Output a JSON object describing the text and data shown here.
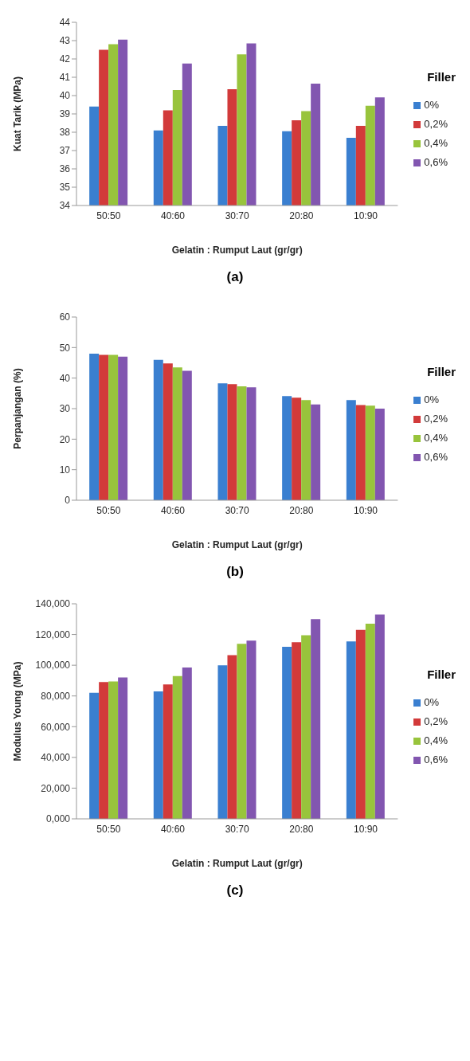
{
  "chart_data": [
    {
      "type": "bar",
      "ylabel": "Kuat Tarik (MPa)",
      "xlabel": "Gelatin : Rumput Laut (gr/gr)",
      "legend_title": "Filler",
      "legend": "right",
      "categories": [
        "50:50",
        "40:60",
        "30:70",
        "20:80",
        "10:90"
      ],
      "ylim": [
        34,
        44
      ],
      "yticks": [
        34,
        35,
        36,
        37,
        38,
        39,
        40,
        41,
        42,
        43,
        44
      ],
      "annotations": [
        "(a)"
      ],
      "series": [
        {
          "name": "0%",
          "color": "#3a7fd0",
          "values": [
            39.4,
            38.1,
            38.35,
            38.05,
            37.7
          ]
        },
        {
          "name": "0,2%",
          "color": "#d23a3a",
          "values": [
            42.5,
            39.2,
            40.35,
            38.65,
            38.35
          ]
        },
        {
          "name": "0,4%",
          "color": "#98c43c",
          "values": [
            42.8,
            40.3,
            42.25,
            39.15,
            39.45
          ]
        },
        {
          "name": "0,6%",
          "color": "#8256b0",
          "values": [
            43.05,
            41.75,
            42.85,
            40.65,
            39.9
          ]
        }
      ]
    },
    {
      "type": "bar",
      "ylabel": "Perpanjangan (%)",
      "xlabel": "Gelatin : Rumput Laut (gr/gr)",
      "legend_title": "Filler",
      "legend": "right",
      "categories": [
        "50:50",
        "40:60",
        "30:70",
        "20:80",
        "10:90"
      ],
      "ylim": [
        0,
        60
      ],
      "yticks": [
        0,
        10,
        20,
        30,
        40,
        50,
        60
      ],
      "annotations": [
        "(b)"
      ],
      "series": [
        {
          "name": "0%",
          "color": "#3a7fd0",
          "values": [
            48,
            46,
            38.3,
            34.1,
            32.8
          ]
        },
        {
          "name": "0,2%",
          "color": "#d23a3a",
          "values": [
            47.6,
            44.8,
            38,
            33.6,
            31.2
          ]
        },
        {
          "name": "0,4%",
          "color": "#98c43c",
          "values": [
            47.6,
            43.5,
            37.3,
            32.8,
            31
          ]
        },
        {
          "name": "0,6%",
          "color": "#8256b0",
          "values": [
            47,
            42.4,
            37,
            31.4,
            30
          ]
        }
      ]
    },
    {
      "type": "bar",
      "ylabel": "Modulus Young (MPa)",
      "xlabel": "Gelatin : Rumput Laut (gr/gr)",
      "legend_title": "Filler",
      "legend": "right",
      "categories": [
        "50:50",
        "40:60",
        "30:70",
        "20:80",
        "10:90"
      ],
      "ylim": [
        0,
        140
      ],
      "yticks": [
        {
          "value": 0,
          "label": "0,000"
        },
        {
          "value": 20,
          "label": "20,000"
        },
        {
          "value": 40,
          "label": "40,000"
        },
        {
          "value": 60,
          "label": "60,000"
        },
        {
          "value": 80,
          "label": "80,000"
        },
        {
          "value": 100,
          "label": "100,000"
        },
        {
          "value": 120,
          "label": "120,000"
        },
        {
          "value": 140,
          "label": "140,000"
        }
      ],
      "annotations": [
        "(c)"
      ],
      "series": [
        {
          "name": "0%",
          "color": "#3a7fd0",
          "values": [
            82,
            83,
            100,
            112,
            115.5
          ]
        },
        {
          "name": "0,2%",
          "color": "#d23a3a",
          "values": [
            89,
            87.5,
            106.5,
            115,
            123
          ]
        },
        {
          "name": "0,4%",
          "color": "#98c43c",
          "values": [
            89.5,
            93,
            114,
            119.5,
            127
          ]
        },
        {
          "name": "0,6%",
          "color": "#8256b0",
          "values": [
            92,
            98.5,
            116,
            130,
            133
          ]
        }
      ]
    }
  ]
}
